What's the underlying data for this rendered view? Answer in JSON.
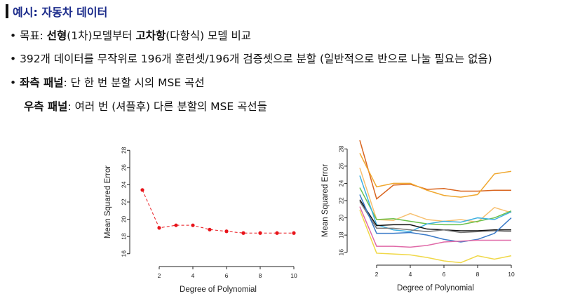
{
  "header": {
    "title": "예시: 자동차 데이터"
  },
  "bullets": {
    "b1_prefix": "• 목표: ",
    "b1_strong1": "선형",
    "b1_mid": "(1차)모델부터 ",
    "b1_strong2": "고차항",
    "b1_suffix": "(다항식) 모델 비교",
    "b2": "• 392개 데이터를 무작위로 196개 훈련셋/196개 검증셋으로 분할 (일반적으로 반으로 나눌 필요는 없음)",
    "b3_prefix": "• ",
    "b3_strong": "좌측 패널",
    "b3_suffix": ": 단 한 번 분할 시의 MSE 곡선",
    "b4_strong": "우측 패널",
    "b4_suffix": ": 여러 번 (셔플후) 다른 분할의 MSE 곡선들"
  },
  "chart_data": [
    {
      "type": "line",
      "panel": "left",
      "xlabel": "Degree of Polynomial",
      "ylabel": "Mean Squared Error",
      "x": [
        1,
        2,
        3,
        4,
        5,
        6,
        7,
        8,
        9,
        10
      ],
      "xticks": [
        2,
        4,
        6,
        8,
        10
      ],
      "yticks": [
        16,
        18,
        20,
        22,
        24,
        26,
        28
      ],
      "xlim": [
        0.5,
        10.5
      ],
      "ylim": [
        15,
        29
      ],
      "grid": false,
      "series": [
        {
          "color": "#e8141a",
          "markers": true,
          "values": [
            23.4,
            19.0,
            19.3,
            19.3,
            18.8,
            18.6,
            18.4,
            18.4,
            18.4,
            18.4
          ]
        }
      ]
    },
    {
      "type": "line",
      "panel": "right",
      "xlabel": "Degree of Polynomial",
      "ylabel": "Mean Squared Error",
      "x": [
        1,
        2,
        3,
        4,
        5,
        6,
        7,
        8,
        9,
        10
      ],
      "xticks": [
        2,
        4,
        6,
        8,
        10
      ],
      "yticks": [
        16,
        18,
        20,
        22,
        24,
        26,
        28
      ],
      "xlim": [
        0.5,
        10.5
      ],
      "ylim": [
        15,
        29
      ],
      "grid": false,
      "series": [
        {
          "color": "#d9651f",
          "values": [
            29.0,
            22.2,
            23.8,
            23.9,
            23.3,
            23.4,
            23.1,
            23.1,
            23.2,
            23.2
          ]
        },
        {
          "color": "#f0a830",
          "values": [
            27.5,
            23.6,
            24.0,
            24.0,
            23.2,
            22.6,
            22.4,
            22.7,
            25.1,
            25.4
          ]
        },
        {
          "color": "#f7c070",
          "values": [
            25.8,
            19.8,
            19.7,
            20.5,
            19.8,
            19.6,
            19.8,
            19.5,
            21.2,
            20.6
          ]
        },
        {
          "color": "#6bc04b",
          "values": [
            23.5,
            19.8,
            19.9,
            19.6,
            19.3,
            19.2,
            19.2,
            19.6,
            20.0,
            20.8
          ]
        },
        {
          "color": "#3fb0e0",
          "values": [
            24.9,
            19.2,
            18.6,
            18.4,
            19.3,
            19.6,
            19.5,
            20.0,
            19.8,
            20.7
          ]
        },
        {
          "color": "#111111",
          "values": [
            22.1,
            19.1,
            19.2,
            19.2,
            18.7,
            18.6,
            18.5,
            18.5,
            18.6,
            18.6
          ]
        },
        {
          "color": "#777777",
          "values": [
            21.9,
            18.8,
            18.8,
            18.6,
            18.4,
            18.6,
            18.3,
            18.4,
            18.5,
            18.4
          ]
        },
        {
          "color": "#3a7ac8",
          "values": [
            22.7,
            18.2,
            18.2,
            18.3,
            18.0,
            17.5,
            17.2,
            17.5,
            18.2,
            20.0
          ]
        },
        {
          "color": "#e06aa8",
          "values": [
            21.3,
            16.7,
            16.7,
            16.6,
            16.8,
            17.2,
            17.3,
            17.4,
            17.4,
            17.4
          ]
        },
        {
          "color": "#f0d848",
          "values": [
            20.9,
            15.9,
            15.8,
            15.7,
            15.4,
            15.0,
            14.8,
            15.6,
            15.2,
            15.6
          ]
        }
      ]
    }
  ]
}
